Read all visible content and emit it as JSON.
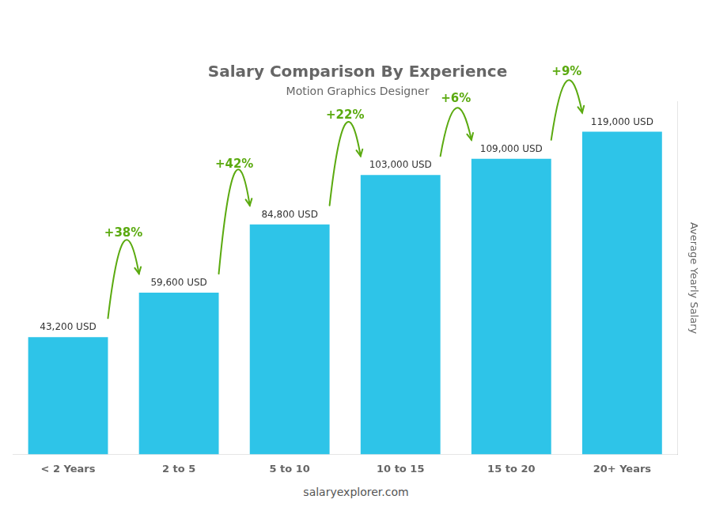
{
  "chart_data": {
    "type": "bar",
    "title": "Salary Comparison By Experience",
    "subtitle": "Motion Graphics Designer",
    "categories": [
      "< 2 Years",
      "2 to 5",
      "5 to 10",
      "10 to 15",
      "15 to 20",
      "20+ Years"
    ],
    "values": [
      43200,
      59600,
      84800,
      103000,
      109000,
      119000
    ],
    "value_labels": [
      "43,200 USD",
      "59,600 USD",
      "84,800 USD",
      "103,000 USD",
      "109,000 USD",
      "119,000 USD"
    ],
    "data_labels": true,
    "color": "#2EC4E8",
    "ylabel": "Average Yearly Salary",
    "ylim": [
      0,
      130000
    ],
    "grid": false,
    "tick_labels": "x",
    "annotations": [
      "+38%",
      "+42%",
      "+22%",
      "+6%",
      "+9%"
    ],
    "footer": "salaryexplorer.com"
  }
}
